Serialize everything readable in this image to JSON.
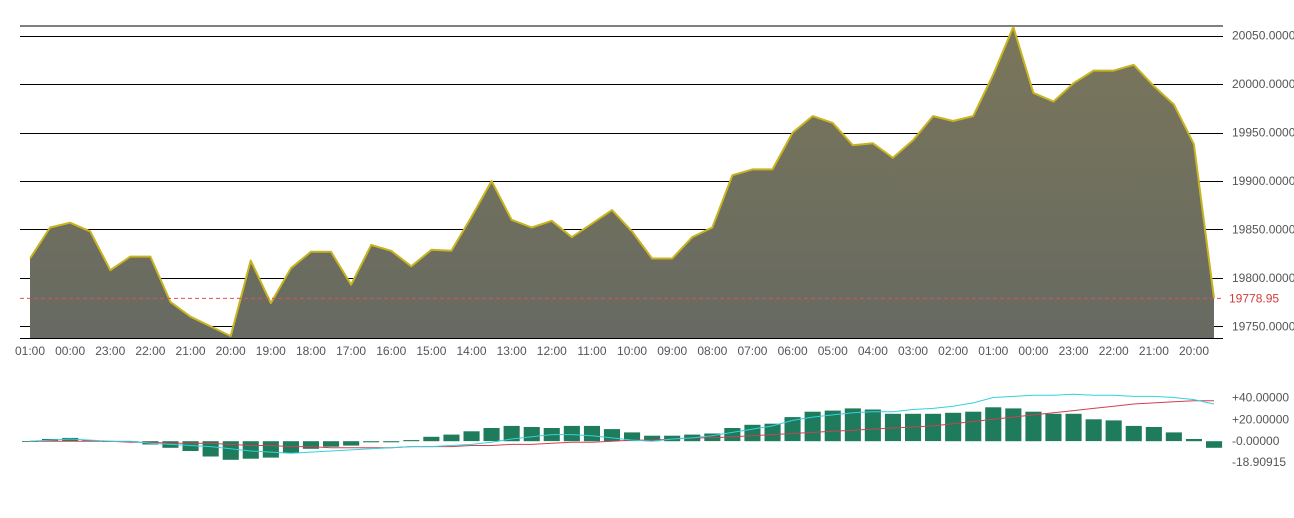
{
  "chart_data": [
    {
      "type": "area",
      "x_tick_labels": [
        "01:00",
        "00:00",
        "23:00",
        "22:00",
        "21:00",
        "20:00",
        "19:00",
        "18:00",
        "17:00",
        "16:00",
        "15:00",
        "14:00",
        "13:00",
        "12:00",
        "11:00",
        "10:00",
        "09:00",
        "08:00",
        "07:00",
        "06:00",
        "05:00",
        "04:00",
        "03:00",
        "02:00",
        "01:00",
        "00:00",
        "23:00",
        "22:00",
        "21:00",
        "20:00"
      ],
      "y_tick_labels": [
        "19750.0000",
        "19800.0000",
        "19850.0000",
        "19900.0000",
        "19950.0000",
        "20000.0000",
        "20050.0000"
      ],
      "y_ticks": [
        19750,
        19800,
        19850,
        19900,
        19950,
        20000,
        20050
      ],
      "ylim": [
        19738,
        20060
      ],
      "values": [
        19820,
        19852,
        19857,
        19848,
        19808,
        19822,
        19822,
        19775,
        19760,
        19750,
        19740,
        19818,
        19774,
        19810,
        19827,
        19827,
        19793,
        19834,
        19828,
        19812,
        19829,
        19828,
        19863,
        19900,
        19860,
        19852,
        19859,
        19842,
        19856,
        19870,
        19848,
        19820,
        19820,
        19842,
        19852,
        19906,
        19912,
        19912,
        19950,
        19967,
        19960,
        19937,
        19939,
        19924,
        19942,
        19967,
        19962,
        19967,
        20010,
        20059,
        19991,
        19982,
        20001,
        20014,
        20014,
        20020,
        19998,
        19979,
        19938,
        19779
      ],
      "last_value_label": "19778.95",
      "last_value": 19778.95,
      "grid": true,
      "colors": {
        "line": "#c8b420",
        "fill_top": "#7a765a",
        "fill_bottom": "#676a62",
        "last_line": "#e05050",
        "grid": "#000000"
      }
    },
    {
      "type": "bar",
      "indicator": "macd",
      "y_tick_labels": [
        "+40.00000",
        "+20.00000",
        "-0.00000",
        "-18.90915"
      ],
      "y_ticks": [
        40,
        20,
        0,
        -18.90915
      ],
      "ylim": [
        -20,
        45
      ],
      "histogram": [
        0,
        2,
        3,
        1,
        0,
        0,
        -3,
        -6,
        -9,
        -14,
        -17,
        -16,
        -15,
        -11,
        -7,
        -5,
        -4,
        -1,
        -1,
        1,
        4,
        6,
        9,
        12,
        14,
        13,
        12,
        14,
        14,
        11,
        8,
        5,
        5,
        6,
        7,
        12,
        15,
        16,
        22,
        27,
        28,
        30,
        29,
        25,
        25,
        25,
        26,
        27,
        31,
        30,
        27,
        25,
        25,
        20,
        19,
        14,
        13,
        8,
        2,
        -6
      ],
      "line_fast": [
        0,
        1,
        2,
        1,
        0,
        0,
        -2,
        -3,
        -4,
        -5,
        -7,
        -9,
        -10,
        -11,
        -10,
        -9,
        -8,
        -7,
        -6,
        -5,
        -5,
        -4,
        -3,
        -1,
        2,
        4,
        6,
        6,
        5,
        3,
        1,
        0,
        2,
        3,
        5,
        8,
        11,
        14,
        19,
        22,
        24,
        26,
        27,
        27,
        29,
        30,
        32,
        35,
        40,
        41,
        42,
        42,
        43,
        42,
        42,
        41,
        41,
        40,
        38,
        34
      ],
      "line_slow": [
        0,
        0,
        0,
        0,
        0,
        -1,
        -1,
        -2,
        -2,
        -2,
        -3,
        -4,
        -4,
        -5,
        -5,
        -6,
        -6,
        -6,
        -6,
        -5,
        -5,
        -5,
        -4,
        -4,
        -3,
        -3,
        -2,
        -1,
        -1,
        0,
        1,
        1,
        2,
        3,
        3,
        4,
        5,
        6,
        7,
        8,
        9,
        10,
        11,
        12,
        13,
        14,
        16,
        18,
        20,
        22,
        24,
        26,
        28,
        30,
        32,
        34,
        35,
        36,
        37,
        37
      ],
      "colors": {
        "bar": "#1e7b5c",
        "fast": "#35d0e0",
        "slow": "#d04050"
      }
    }
  ]
}
